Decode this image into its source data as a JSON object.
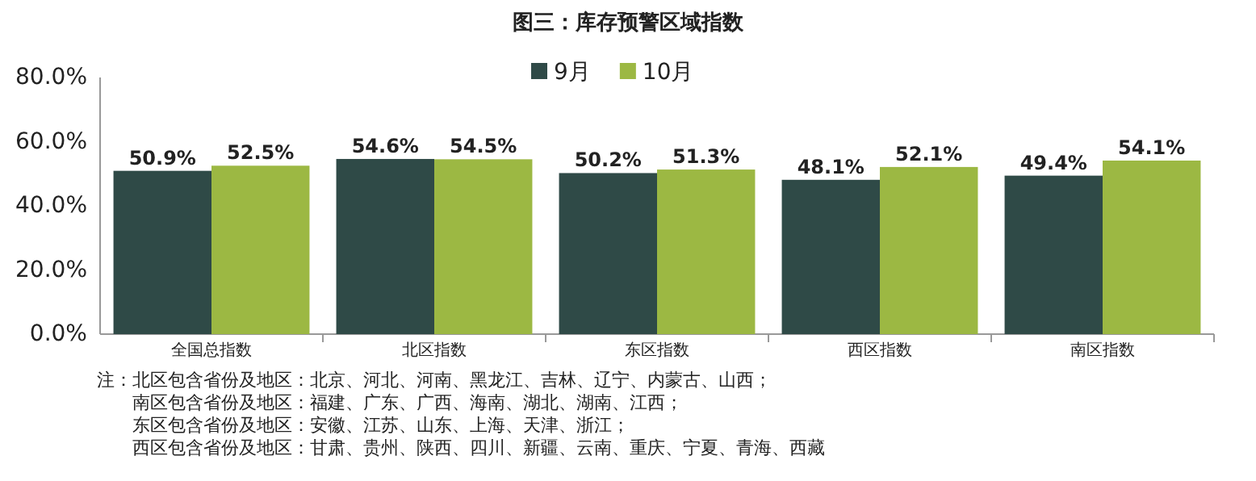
{
  "chart_data": {
    "type": "bar",
    "title": "图三：库存预警区域指数",
    "categories": [
      "全国总指数",
      "北区指数",
      "东区指数",
      "西区指数",
      "南区指数"
    ],
    "series": [
      {
        "name": "9月",
        "color": "#2f4a47",
        "values": [
          50.9,
          54.6,
          50.2,
          48.1,
          49.4
        ],
        "value_labels": [
          "50.9%",
          "54.6%",
          "50.2%",
          "48.1%",
          "49.4%"
        ]
      },
      {
        "name": "10月",
        "color": "#9cb843",
        "values": [
          52.5,
          54.5,
          51.3,
          52.1,
          54.1
        ],
        "value_labels": [
          "52.5%",
          "54.5%",
          "51.3%",
          "52.1%",
          "54.1%"
        ]
      }
    ],
    "ylim": [
      0,
      80
    ],
    "yticks": [
      {
        "value": 0,
        "label": "0.0%"
      },
      {
        "value": 20,
        "label": "20.0%"
      },
      {
        "value": 40,
        "label": "40.0%"
      },
      {
        "value": 60,
        "label": "60.0%"
      },
      {
        "value": 80,
        "label": "80.0%"
      }
    ],
    "grid": false,
    "legend": "top",
    "annotations": [
      "注：北区包含省份及地区：北京、河北、河南、黑龙江、吉林、辽宁、内蒙古、山西；",
      "南区包含省份及地区：福建、广东、广西、海南、湖北、湖南、江西；",
      "东区包含省份及地区：安徽、江苏、山东、上海、天津、浙江；",
      "西区包含省份及地区：甘肃、贵州、陕西、四川、新疆、云南、重庆、宁夏、青海、西藏"
    ]
  }
}
